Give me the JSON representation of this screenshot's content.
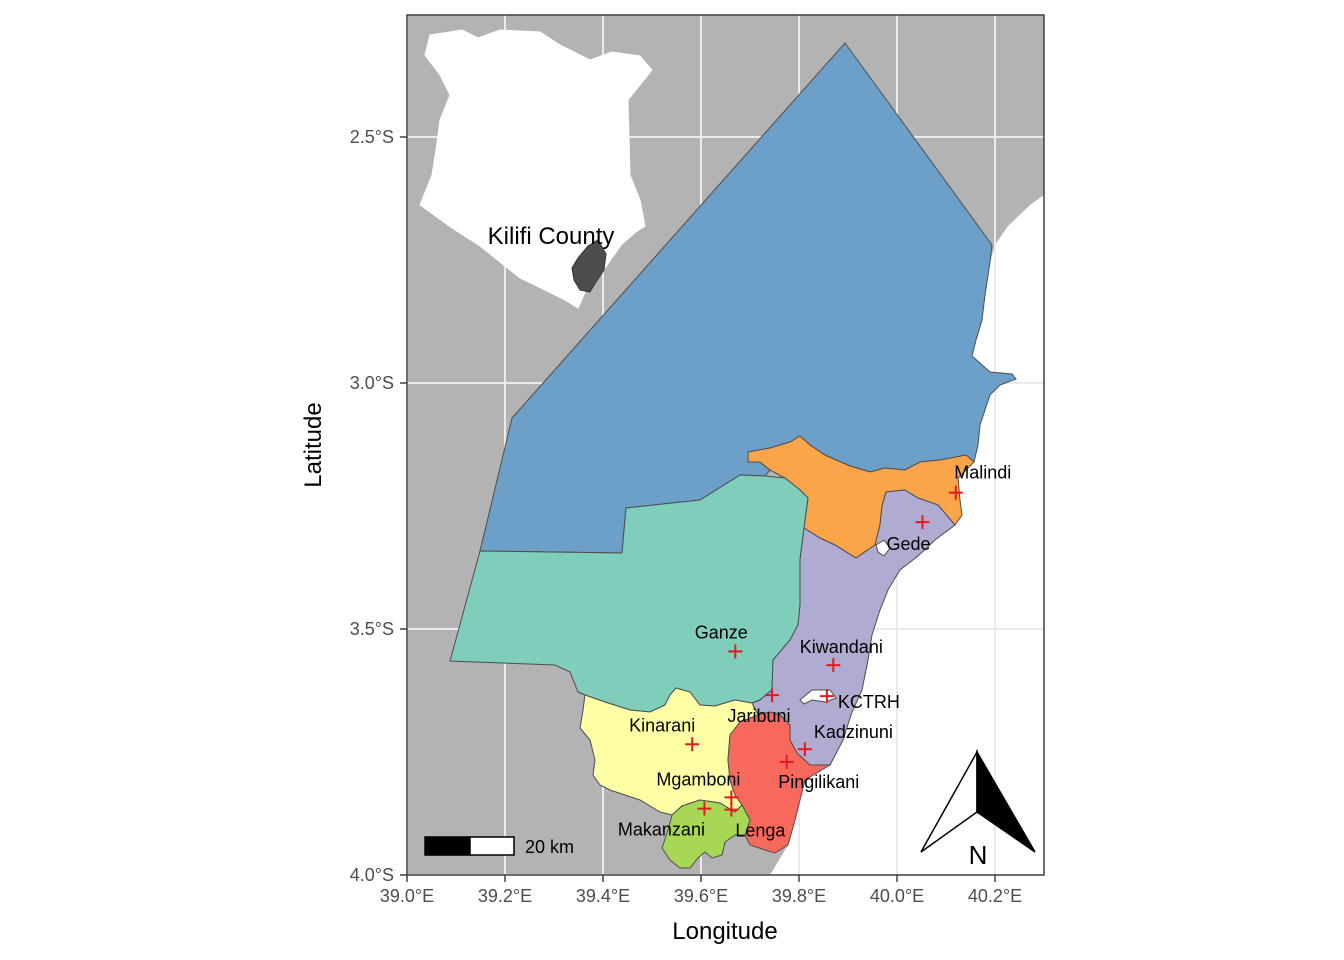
{
  "axes": {
    "xlabel": "Longitude",
    "ylabel": "Latitude",
    "x_ticks": [
      "39.0°E",
      "39.2°E",
      "39.4°E",
      "39.6°E",
      "39.8°E",
      "40.0°E",
      "40.2°E"
    ],
    "y_ticks": [
      "2.5°S",
      "3.0°S",
      "3.5°S",
      "4.0°S"
    ]
  },
  "chart_data": {
    "type": "map",
    "xlim": [
      39.0,
      40.3
    ],
    "ylim": [
      -4.0,
      -2.25
    ],
    "x_tick_values": [
      39.0,
      39.2,
      39.4,
      39.6,
      39.8,
      40.0,
      40.2
    ],
    "y_tick_values": [
      -2.5,
      -3.0,
      -3.5,
      -4.0
    ],
    "grid": true,
    "regions": [
      {
        "id": "north",
        "color": "#6ca0c8"
      },
      {
        "id": "east-orange",
        "color": "#fba54a"
      },
      {
        "id": "central",
        "color": "#7fcdbb"
      },
      {
        "id": "coastal",
        "color": "#b0abd0"
      },
      {
        "id": "southwest",
        "color": "#ffffa6"
      },
      {
        "id": "south-red",
        "color": "#f8695d"
      },
      {
        "id": "south-green",
        "color": "#a6d856"
      }
    ],
    "sites": [
      {
        "name": "Malindi",
        "lon": 40.12,
        "lat": -3.222
      },
      {
        "name": "Gede",
        "lon": 40.052,
        "lat": -3.282
      },
      {
        "name": "Ganze",
        "lon": 39.67,
        "lat": -3.545
      },
      {
        "name": "Kiwandani",
        "lon": 39.87,
        "lat": -3.573
      },
      {
        "name": "KCTRH",
        "lon": 39.857,
        "lat": -3.636
      },
      {
        "name": "Jaribuni",
        "lon": 39.745,
        "lat": -3.634
      },
      {
        "name": "Kinarani",
        "lon": 39.582,
        "lat": -3.734
      },
      {
        "name": "Kadzinuni",
        "lon": 39.812,
        "lat": -3.744
      },
      {
        "name": "Pingilikani",
        "lon": 39.775,
        "lat": -3.77
      },
      {
        "name": "Mgamboni",
        "lon": 39.662,
        "lat": -3.842
      },
      {
        "name": "Lenga",
        "lon": 39.662,
        "lat": -3.867
      },
      {
        "name": "Makanzani",
        "lon": 39.607,
        "lat": -3.865
      }
    ],
    "marker_color": "#e41a1c"
  },
  "inset": {
    "label": "Kilifi County"
  },
  "scale_bar": {
    "label": "20 km"
  },
  "north_arrow": {
    "label": "N"
  },
  "colors": {
    "sea": "#ffffff",
    "land": "#b3b3b3",
    "panel_border": "#333333"
  }
}
